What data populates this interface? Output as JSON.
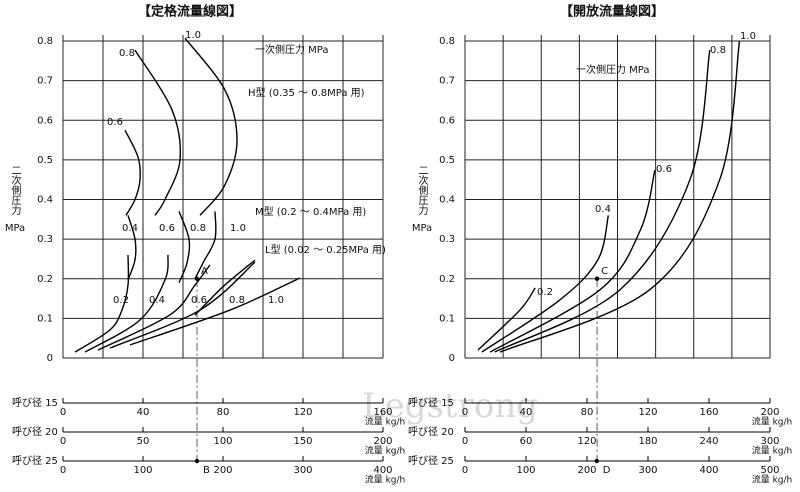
{
  "watermark": "Legstrong",
  "chart_data": [
    {
      "type": "line",
      "title": "【定格流量線図】",
      "y_label": "二次側圧力",
      "y_unit": "MPa",
      "xlim": [
        0,
        160
      ],
      "xgrid": [
        0,
        20,
        40,
        60,
        80,
        100,
        120,
        140,
        160
      ],
      "ylim": [
        0,
        0.8
      ],
      "yticks": [
        0,
        0.1,
        0.2,
        0.3,
        0.4,
        0.5,
        0.6,
        0.7,
        0.8
      ],
      "grid": true,
      "color": "#000000",
      "annotations": [
        "一次側圧力 MPa",
        "H型 (0.35 ～ 0.8MPa 用)",
        "M型 (0.2 ～ 0.4MPa 用)",
        "L型 (0.02 ～ 0.25MPa 用)"
      ],
      "series": [
        {
          "name": "0.6",
          "x": [
            31,
            37.5,
            38.5,
            36,
            31.5
          ],
          "values": [
            0.575,
            0.507,
            0.45,
            0.4,
            0.36
          ]
        },
        {
          "name": "0.8",
          "x": [
            36,
            54.5,
            58.5,
            51,
            46
          ],
          "values": [
            0.777,
            0.626,
            0.5,
            0.4,
            0.36
          ]
        },
        {
          "name": "1.0",
          "x": [
            61,
            81,
            87,
            81,
            68.5
          ],
          "values": [
            0.807,
            0.676,
            0.55,
            0.437,
            0.36
          ]
        },
        {
          "name": "0.4",
          "x": [
            32.5,
            36,
            36,
            32.5
          ],
          "values": [
            0.36,
            0.3,
            0.248,
            0.197
          ]
        },
        {
          "name": "0.6",
          "x": [
            58,
            63,
            62,
            58
          ],
          "values": [
            0.37,
            0.3,
            0.24,
            0.19
          ]
        },
        {
          "name": "0.8",
          "x": [
            76,
            76,
            70,
            66
          ],
          "values": [
            0.37,
            0.3,
            0.24,
            0.2
          ]
        },
        {
          "name": "1.0",
          "x": [
            96,
            80,
            66
          ],
          "values": [
            0.247,
            0.18,
            0.108
          ]
        },
        {
          "name": "0.2",
          "x": [
            6,
            23.5,
            29.5,
            32.5,
            32.5
          ],
          "values": [
            0.015,
            0.071,
            0.121,
            0.184,
            0.26
          ]
        },
        {
          "name": "0.4",
          "x": [
            11,
            38.5,
            51,
            52.5
          ],
          "values": [
            0.015,
            0.096,
            0.197,
            0.26
          ]
        },
        {
          "name": "0.6",
          "x": [
            17.5,
            53.5,
            66,
            73.5
          ],
          "values": [
            0.02,
            0.109,
            0.184,
            0.235
          ]
        },
        {
          "name": "0.8",
          "x": [
            23.5,
            68.5,
            96
          ],
          "values": [
            0.025,
            0.121,
            0.242
          ]
        },
        {
          "name": "1.0",
          "x": [
            33.5,
            83.5,
            118.5
          ],
          "values": [
            0.033,
            0.121,
            0.202
          ]
        }
      ],
      "flow_axes": [
        {
          "name": "呼び径 15",
          "unit": "流量 kg/h",
          "lim": [
            0,
            160
          ],
          "ticks": [
            0,
            40,
            80,
            120,
            160
          ]
        },
        {
          "name": "呼び径 20",
          "unit": "流量 kg/h",
          "lim": [
            0,
            200
          ],
          "ticks": [
            0,
            50,
            100,
            150,
            200
          ]
        },
        {
          "name": "呼び径 25",
          "unit": "流量 kg/h",
          "lim": [
            0,
            400
          ],
          "ticks": [
            0,
            100,
            200,
            300,
            400
          ]
        }
      ],
      "point": {
        "label": "A",
        "x": 67,
        "y": 0.2
      },
      "axis_point": {
        "label": "B",
        "value": 167.5
      }
    },
    {
      "type": "line",
      "title": "【開放流量線図】",
      "y_label": "二次側圧力",
      "y_unit": "MPa",
      "xlim": [
        0,
        200
      ],
      "xgrid": [
        0,
        25,
        50,
        75,
        100,
        125,
        150,
        175,
        200
      ],
      "ylim": [
        0,
        0.8
      ],
      "yticks": [
        0,
        0.1,
        0.2,
        0.3,
        0.4,
        0.5,
        0.6,
        0.7,
        0.8
      ],
      "grid": true,
      "color": "#000000",
      "annotations": [
        "一次側圧力 MPa"
      ],
      "series": [
        {
          "name": "0.2",
          "x": [
            8.5,
            36,
            46
          ],
          "values": [
            0.02,
            0.121,
            0.177
          ]
        },
        {
          "name": "0.4",
          "x": [
            11,
            62,
            87,
            94
          ],
          "values": [
            0.015,
            0.146,
            0.247,
            0.36
          ]
        },
        {
          "name": "0.6",
          "x": [
            16.5,
            88.5,
            115,
            124.5
          ],
          "values": [
            0.015,
            0.172,
            0.323,
            0.474
          ]
        },
        {
          "name": "0.8",
          "x": [
            19.5,
            101.5,
            147.5,
            160.5
          ],
          "values": [
            0.015,
            0.172,
            0.45,
            0.777
          ]
        },
        {
          "name": "1.0",
          "x": [
            23,
            121,
            167,
            180
          ],
          "values": [
            0.015,
            0.172,
            0.45,
            0.8
          ]
        }
      ],
      "flow_axes": [
        {
          "name": "呼び径 15",
          "unit": "流量 kg/h",
          "lim": [
            0,
            200
          ],
          "ticks": [
            0,
            40,
            80,
            120,
            160,
            200
          ]
        },
        {
          "name": "呼び径 20",
          "unit": "流量 kg/h",
          "lim": [
            0,
            300
          ],
          "ticks": [
            0,
            60,
            120,
            180,
            240,
            300
          ]
        },
        {
          "name": "呼び径 25",
          "unit": "流量 kg/h",
          "lim": [
            0,
            500
          ],
          "ticks": [
            0,
            100,
            200,
            300,
            400,
            500
          ]
        }
      ],
      "point": {
        "label": "C",
        "x": 86.6,
        "y": 0.2
      },
      "axis_point": {
        "label": "D",
        "value": 216
      }
    }
  ]
}
